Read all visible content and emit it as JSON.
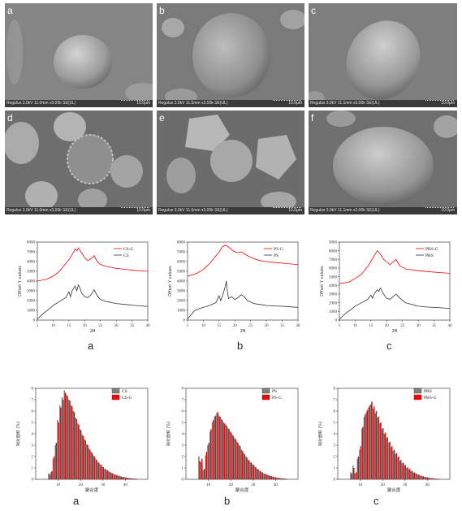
{
  "sem": {
    "panels": [
      {
        "letter": "a",
        "info": "Regulus 3.0kV 11.0mm x3.00k SE(UL)",
        "scale": "10.0µm"
      },
      {
        "letter": "b",
        "info": "Regulus 3.0kV 11.5mm x3.00k SE(UL)",
        "scale": "10.0µm"
      },
      {
        "letter": "c",
        "info": "Regulus 3.0kV 11.1mm x3.00k SE(UL)",
        "scale": "10.0µm"
      },
      {
        "letter": "d",
        "info": "Regulus 3.0kV 11.0mm x3.00k SE(UL)",
        "scale": "10.0µm"
      },
      {
        "letter": "e",
        "info": "Regulus 3.0kV 11.5mm x3.00k SE(UL)",
        "scale": "10.0µm"
      },
      {
        "letter": "f",
        "info": "Regulus 3.0kV 11.1mm x3.00k SE(UL)",
        "scale": "10.0µm"
      }
    ]
  },
  "colors": {
    "red": "#ff0000",
    "black": "#333333",
    "gray": "#808080",
    "axis": "#444444"
  },
  "xrd_letters": [
    "a",
    "b",
    "c"
  ],
  "dist_letters": [
    "a",
    "b",
    "c"
  ],
  "chart_data": [
    {
      "type": "line",
      "panel": "xrd-a",
      "xlabel": "2θ",
      "ylabel": "Offset Y values",
      "xlim": [
        5,
        40
      ],
      "ylim": [
        0,
        8000
      ],
      "xticks": [
        5,
        10,
        15,
        20,
        25,
        30,
        35,
        40
      ],
      "yticks": [
        0,
        1000,
        2000,
        3000,
        4000,
        5000,
        6000,
        7000,
        8000
      ],
      "series": [
        {
          "name": "CS-G",
          "color": "#ff0000",
          "x": [
            5,
            8,
            10,
            12,
            14,
            15,
            16,
            17,
            17.5,
            18,
            19,
            20,
            21,
            22,
            23,
            24,
            25,
            27,
            30,
            33,
            36,
            38,
            40
          ],
          "y": [
            4000,
            4200,
            4500,
            5000,
            5800,
            6200,
            6700,
            7300,
            7100,
            7400,
            6900,
            6400,
            6100,
            6300,
            6600,
            6000,
            5700,
            5500,
            5300,
            5200,
            5100,
            5050,
            5000
          ]
        },
        {
          "name": "CS",
          "color": "#333333",
          "x": [
            5,
            7,
            9,
            10,
            12,
            14,
            15,
            15.5,
            16,
            17,
            17.5,
            18,
            18.5,
            19,
            20,
            21,
            22,
            23,
            24,
            25,
            27,
            30,
            33,
            36,
            38,
            40
          ],
          "y": [
            100,
            700,
            1200,
            1500,
            1900,
            2300,
            2900,
            2400,
            3000,
            3500,
            3000,
            3600,
            3300,
            2800,
            2400,
            2300,
            2600,
            3100,
            2500,
            2100,
            1900,
            1700,
            1600,
            1500,
            1450,
            1400
          ]
        }
      ]
    },
    {
      "type": "line",
      "panel": "xrd-b",
      "xlabel": "2θ",
      "ylabel": "Offset Y values",
      "xlim": [
        5,
        40
      ],
      "ylim": [
        0,
        8000
      ],
      "xticks": [
        5,
        10,
        15,
        20,
        25,
        30,
        35,
        40
      ],
      "yticks": [
        0,
        1000,
        2000,
        3000,
        4000,
        5000,
        6000,
        7000,
        8000
      ],
      "series": [
        {
          "name": "PS-G",
          "color": "#ff0000",
          "x": [
            5,
            8,
            10,
            12,
            14,
            15,
            16,
            17,
            18,
            19,
            20,
            21,
            22,
            23,
            24,
            26,
            28,
            30,
            33,
            36,
            38,
            40
          ],
          "y": [
            4500,
            4800,
            5200,
            5800,
            6600,
            7000,
            7500,
            7700,
            7500,
            7200,
            7000,
            6900,
            7000,
            6800,
            6600,
            6300,
            6100,
            6000,
            5900,
            5800,
            5750,
            5700
          ]
        },
        {
          "name": "PS",
          "color": "#333333",
          "x": [
            5,
            6,
            7,
            8,
            10,
            12,
            14,
            15,
            15.5,
            16,
            17,
            17.3,
            17.6,
            18,
            19,
            20,
            21,
            22,
            23,
            24,
            26,
            28,
            30,
            33,
            36,
            38,
            40
          ],
          "y": [
            100,
            500,
            900,
            1100,
            1300,
            1500,
            1800,
            2500,
            2000,
            2400,
            3500,
            4000,
            3000,
            2200,
            2400,
            2100,
            2300,
            2600,
            2400,
            2000,
            1700,
            1600,
            1500,
            1450,
            1400,
            1350,
            1300
          ]
        }
      ]
    },
    {
      "type": "line",
      "panel": "xrd-c",
      "xlabel": "2θ",
      "ylabel": "Offset Y values",
      "xlim": [
        5,
        40
      ],
      "ylim": [
        0,
        9000
      ],
      "xticks": [
        5,
        10,
        15,
        20,
        25,
        30,
        35,
        40
      ],
      "yticks": [
        0,
        1000,
        2000,
        3000,
        4000,
        5000,
        6000,
        7000,
        8000,
        9000
      ],
      "series": [
        {
          "name": "PBS-G",
          "color": "#ff0000",
          "x": [
            5,
            8,
            10,
            12,
            14,
            15,
            16,
            17,
            18,
            19,
            20,
            21,
            22,
            23,
            24,
            26,
            28,
            30,
            33,
            36,
            38,
            40
          ],
          "y": [
            4200,
            4400,
            4800,
            5300,
            6200,
            6800,
            7400,
            8000,
            7600,
            7000,
            6700,
            6400,
            6700,
            7000,
            6300,
            5900,
            5800,
            5700,
            5600,
            5500,
            5450,
            5400
          ]
        },
        {
          "name": "PBS",
          "color": "#333333",
          "x": [
            5,
            7,
            9,
            10,
            12,
            14,
            15,
            15.5,
            16,
            17,
            17.5,
            18,
            19,
            20,
            21,
            22,
            23,
            24,
            26,
            28,
            30,
            33,
            36,
            38,
            40
          ],
          "y": [
            100,
            800,
            1300,
            1600,
            2000,
            2400,
            2900,
            2500,
            3000,
            3500,
            3300,
            3700,
            3000,
            2500,
            2400,
            2700,
            3000,
            2600,
            2000,
            1800,
            1600,
            1500,
            1450,
            1400,
            1350
          ]
        }
      ]
    },
    {
      "type": "bar",
      "panel": "dist-a",
      "xlabel": "聚合度",
      "ylabel": "相对面积 (%)",
      "xlim": [
        0,
        50
      ],
      "ylim": [
        0,
        8
      ],
      "xticks": [
        10,
        20,
        30,
        40
      ],
      "yticks": [
        0,
        1,
        2,
        3,
        4,
        5,
        6,
        7,
        8
      ],
      "x": [
        6,
        7,
        8,
        9,
        10,
        11,
        12,
        13,
        14,
        15,
        16,
        17,
        18,
        19,
        20,
        21,
        22,
        23,
        24,
        25,
        26,
        27,
        28,
        29,
        30,
        31,
        32,
        33,
        34,
        35,
        36,
        37,
        38,
        39,
        40,
        41,
        42,
        43,
        44,
        45
      ],
      "series": [
        {
          "name": "CS",
          "color": "#808080",
          "values": [
            0.5,
            0.6,
            1.8,
            3.0,
            5.2,
            6.5,
            7.2,
            7.8,
            7.4,
            7.0,
            6.5,
            6.0,
            5.4,
            4.9,
            4.4,
            3.9,
            3.5,
            3.1,
            2.7,
            2.4,
            2.1,
            1.8,
            1.5,
            1.3,
            1.1,
            0.9,
            0.8,
            0.65,
            0.55,
            0.45,
            0.38,
            0.3,
            0.25,
            0.2,
            0.16,
            0.12,
            0.09,
            0.07,
            0.05,
            0.04
          ]
        },
        {
          "name": "CS-G",
          "color": "#ff0000",
          "values": [
            0.4,
            0.7,
            2.0,
            3.2,
            5.0,
            6.3,
            7.0,
            7.6,
            7.3,
            6.9,
            6.4,
            5.9,
            5.3,
            4.8,
            4.3,
            3.8,
            3.4,
            3.0,
            2.6,
            2.3,
            2.0,
            1.7,
            1.45,
            1.25,
            1.05,
            0.88,
            0.75,
            0.62,
            0.52,
            0.43,
            0.36,
            0.29,
            0.24,
            0.19,
            0.15,
            0.11,
            0.08,
            0.06,
            0.05,
            0.03
          ]
        }
      ]
    },
    {
      "type": "bar",
      "panel": "dist-b",
      "xlabel": "聚合度",
      "ylabel": "相对面积 (%)",
      "xlim": [
        0,
        50
      ],
      "ylim": [
        0,
        8
      ],
      "xticks": [
        10,
        20,
        30,
        40
      ],
      "yticks": [
        0,
        1,
        2,
        3,
        4,
        5,
        6,
        7,
        8
      ],
      "x": [
        6,
        7,
        8,
        9,
        10,
        11,
        12,
        13,
        14,
        15,
        16,
        17,
        18,
        19,
        20,
        21,
        22,
        23,
        24,
        25,
        26,
        27,
        28,
        29,
        30,
        31,
        32,
        33,
        34,
        35,
        36,
        37,
        38,
        39,
        40,
        41,
        42,
        43,
        44,
        45
      ],
      "series": [
        {
          "name": "PS",
          "color": "#808080",
          "values": [
            2.0,
            1.5,
            0.8,
            2.1,
            3.0,
            4.2,
            5.0,
            5.5,
            5.8,
            5.6,
            5.3,
            5.0,
            4.8,
            4.5,
            4.2,
            3.9,
            3.6,
            3.3,
            3.0,
            2.6,
            2.3,
            2.0,
            1.7,
            1.5,
            1.3,
            1.1,
            0.9,
            0.75,
            0.62,
            0.5,
            0.42,
            0.35,
            0.28,
            0.22,
            0.17,
            0.13,
            0.1,
            0.08,
            0.06,
            0.04
          ]
        },
        {
          "name": "PS-G",
          "color": "#ff0000",
          "values": [
            1.6,
            1.8,
            0.9,
            2.4,
            3.2,
            4.4,
            5.2,
            5.6,
            5.9,
            5.5,
            5.2,
            4.9,
            4.7,
            4.4,
            4.1,
            3.8,
            3.5,
            3.2,
            2.9,
            2.5,
            2.2,
            1.9,
            1.65,
            1.45,
            1.25,
            1.05,
            0.88,
            0.72,
            0.6,
            0.48,
            0.4,
            0.33,
            0.27,
            0.21,
            0.16,
            0.12,
            0.09,
            0.07,
            0.05,
            0.03
          ]
        }
      ]
    },
    {
      "type": "bar",
      "panel": "dist-c",
      "xlabel": "聚合度",
      "ylabel": "相对面积 (%)",
      "xlim": [
        0,
        50
      ],
      "ylim": [
        0,
        8
      ],
      "xticks": [
        10,
        20,
        30,
        40
      ],
      "yticks": [
        0,
        1,
        2,
        3,
        4,
        5,
        6,
        7,
        8
      ],
      "x": [
        6,
        7,
        8,
        9,
        10,
        11,
        12,
        13,
        14,
        15,
        16,
        17,
        18,
        19,
        20,
        21,
        22,
        23,
        24,
        25,
        26,
        27,
        28,
        29,
        30,
        31,
        32,
        33,
        34,
        35,
        36,
        37,
        38,
        39,
        40,
        41,
        42,
        43,
        44,
        45
      ],
      "series": [
        {
          "name": "PBS",
          "color": "#808080",
          "values": [
            0.6,
            1.2,
            0.5,
            1.8,
            2.6,
            4.4,
            5.5,
            5.9,
            6.3,
            6.6,
            6.2,
            5.8,
            5.4,
            4.9,
            4.4,
            4.0,
            3.6,
            3.2,
            2.8,
            2.5,
            2.2,
            1.9,
            1.6,
            1.4,
            1.2,
            1.0,
            0.85,
            0.7,
            0.58,
            0.47,
            0.38,
            0.3,
            0.24,
            0.19,
            0.15,
            0.11,
            0.08,
            0.06,
            0.05,
            0.03
          ]
        },
        {
          "name": "PBS-G",
          "color": "#ff0000",
          "values": [
            0.5,
            1.0,
            0.6,
            2.0,
            2.9,
            4.6,
            5.7,
            6.1,
            6.5,
            6.8,
            6.4,
            6.0,
            5.5,
            5.0,
            4.5,
            4.1,
            3.7,
            3.3,
            2.9,
            2.6,
            2.3,
            2.0,
            1.7,
            1.45,
            1.25,
            1.05,
            0.9,
            0.74,
            0.6,
            0.49,
            0.4,
            0.32,
            0.26,
            0.2,
            0.16,
            0.12,
            0.09,
            0.07,
            0.05,
            0.03
          ]
        }
      ]
    }
  ]
}
